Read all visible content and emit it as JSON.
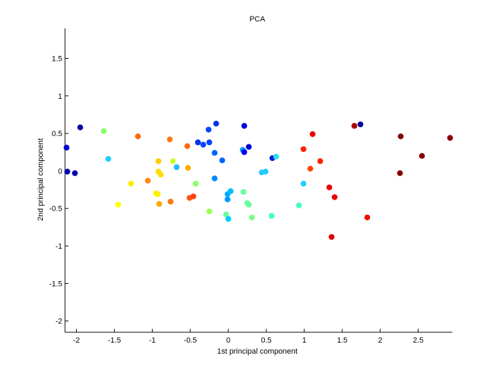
{
  "chart_data": {
    "type": "scatter",
    "title": "PCA",
    "xlabel": "1st principal component",
    "ylabel": "2nd principal component",
    "xlim": [
      -2.15,
      2.95
    ],
    "ylim": [
      -2.15,
      1.9
    ],
    "xticks": [
      -2,
      -1.5,
      -1,
      -0.5,
      0,
      0.5,
      1,
      1.5,
      2,
      2.5
    ],
    "xtick_labels": [
      "-2",
      "-1.5",
      "-1",
      "-0.5",
      "0",
      "0.5",
      "1",
      "1.5",
      "2",
      "2.5"
    ],
    "yticks": [
      -2,
      -1.5,
      -1,
      -0.5,
      0,
      0.5,
      1,
      1.5
    ],
    "ytick_labels": [
      "-2",
      "-1.5",
      "-1",
      "-0.5",
      "0",
      "0.5",
      "1",
      "1.5"
    ],
    "grid": false,
    "points": [
      {
        "x": -2.13,
        "y": 0.31,
        "color": "#0000cc"
      },
      {
        "x": -2.12,
        "y": -0.01,
        "color": "#0000b0"
      },
      {
        "x": -2.02,
        "y": -0.03,
        "color": "#0000b0"
      },
      {
        "x": -1.95,
        "y": 0.58,
        "color": "#0000a0"
      },
      {
        "x": -1.64,
        "y": 0.53,
        "color": "#88ff66"
      },
      {
        "x": -1.58,
        "y": 0.16,
        "color": "#22ccff"
      },
      {
        "x": -1.45,
        "y": -0.45,
        "color": "#ffff00"
      },
      {
        "x": -1.28,
        "y": -0.17,
        "color": "#ffee00"
      },
      {
        "x": -1.19,
        "y": 0.46,
        "color": "#ff6611"
      },
      {
        "x": -1.06,
        "y": -0.13,
        "color": "#ff8811"
      },
      {
        "x": -0.95,
        "y": -0.3,
        "color": "#ffee00"
      },
      {
        "x": -0.93,
        "y": -0.31,
        "color": "#ffee00"
      },
      {
        "x": -0.92,
        "y": 0.13,
        "color": "#ffcc00"
      },
      {
        "x": -0.92,
        "y": -0.01,
        "color": "#ffdd00"
      },
      {
        "x": -0.91,
        "y": -0.44,
        "color": "#ffaa00"
      },
      {
        "x": -0.89,
        "y": -0.05,
        "color": "#ffdd00"
      },
      {
        "x": -0.77,
        "y": 0.42,
        "color": "#ff7711"
      },
      {
        "x": -0.76,
        "y": -0.41,
        "color": "#ff7711"
      },
      {
        "x": -0.73,
        "y": 0.13,
        "color": "#ccff33"
      },
      {
        "x": -0.68,
        "y": 0.05,
        "color": "#22bbff"
      },
      {
        "x": -0.54,
        "y": 0.33,
        "color": "#ff6611"
      },
      {
        "x": -0.53,
        "y": 0.04,
        "color": "#ffaa00"
      },
      {
        "x": -0.51,
        "y": -0.36,
        "color": "#ff5511"
      },
      {
        "x": -0.46,
        "y": -0.34,
        "color": "#ff4411"
      },
      {
        "x": -0.43,
        "y": -0.17,
        "color": "#88ff66"
      },
      {
        "x": -0.4,
        "y": 0.38,
        "color": "#0033ee"
      },
      {
        "x": -0.33,
        "y": 0.35,
        "color": "#0044ff"
      },
      {
        "x": -0.26,
        "y": 0.55,
        "color": "#0044ff"
      },
      {
        "x": -0.25,
        "y": -0.54,
        "color": "#99ff55"
      },
      {
        "x": -0.25,
        "y": 0.38,
        "color": "#0044ff"
      },
      {
        "x": -0.18,
        "y": 0.24,
        "color": "#0066ff"
      },
      {
        "x": -0.18,
        "y": -0.1,
        "color": "#0088ff"
      },
      {
        "x": -0.16,
        "y": 0.63,
        "color": "#0033ee"
      },
      {
        "x": -0.08,
        "y": 0.14,
        "color": "#0066ff"
      },
      {
        "x": -0.03,
        "y": -0.58,
        "color": "#66ff99"
      },
      {
        "x": -0.01,
        "y": -0.31,
        "color": "#00aaff"
      },
      {
        "x": -0.01,
        "y": -0.38,
        "color": "#0099ff"
      },
      {
        "x": 0.0,
        "y": -0.64,
        "color": "#00ccff"
      },
      {
        "x": 0.03,
        "y": -0.27,
        "color": "#00bbff"
      },
      {
        "x": 0.19,
        "y": 0.28,
        "color": "#0099ff"
      },
      {
        "x": 0.2,
        "y": -0.28,
        "color": "#66ff99"
      },
      {
        "x": 0.21,
        "y": 0.6,
        "color": "#0000dd"
      },
      {
        "x": 0.21,
        "y": 0.25,
        "color": "#0000ee"
      },
      {
        "x": 0.25,
        "y": -0.43,
        "color": "#66ff99"
      },
      {
        "x": 0.27,
        "y": -0.45,
        "color": "#66ff99"
      },
      {
        "x": 0.27,
        "y": 0.32,
        "color": "#0000cc"
      },
      {
        "x": 0.31,
        "y": -0.62,
        "color": "#77ff88"
      },
      {
        "x": 0.44,
        "y": -0.02,
        "color": "#22ccff"
      },
      {
        "x": 0.49,
        "y": -0.01,
        "color": "#22ccff"
      },
      {
        "x": 0.57,
        "y": -0.6,
        "color": "#44ffbb"
      },
      {
        "x": 0.58,
        "y": 0.17,
        "color": "#0022dd"
      },
      {
        "x": 0.63,
        "y": 0.19,
        "color": "#33ddee"
      },
      {
        "x": 0.93,
        "y": -0.46,
        "color": "#44ffbb"
      },
      {
        "x": 0.99,
        "y": 0.29,
        "color": "#ff2200"
      },
      {
        "x": 0.99,
        "y": -0.17,
        "color": "#22ccff"
      },
      {
        "x": 1.08,
        "y": 0.03,
        "color": "#ff4400"
      },
      {
        "x": 1.11,
        "y": 0.49,
        "color": "#ee0000"
      },
      {
        "x": 1.21,
        "y": 0.13,
        "color": "#ff2200"
      },
      {
        "x": 1.33,
        "y": -0.22,
        "color": "#ee0000"
      },
      {
        "x": 1.36,
        "y": -0.88,
        "color": "#dd0000"
      },
      {
        "x": 1.4,
        "y": -0.35,
        "color": "#ee0000"
      },
      {
        "x": 1.66,
        "y": 0.6,
        "color": "#aa0000"
      },
      {
        "x": 1.74,
        "y": 0.62,
        "color": "#000099"
      },
      {
        "x": 1.83,
        "y": -0.62,
        "color": "#ee1100"
      },
      {
        "x": 2.26,
        "y": -0.03,
        "color": "#880000"
      },
      {
        "x": 2.27,
        "y": 0.46,
        "color": "#800000"
      },
      {
        "x": 2.55,
        "y": 0.2,
        "color": "#880000"
      },
      {
        "x": 2.92,
        "y": 0.44,
        "color": "#880000"
      }
    ]
  }
}
